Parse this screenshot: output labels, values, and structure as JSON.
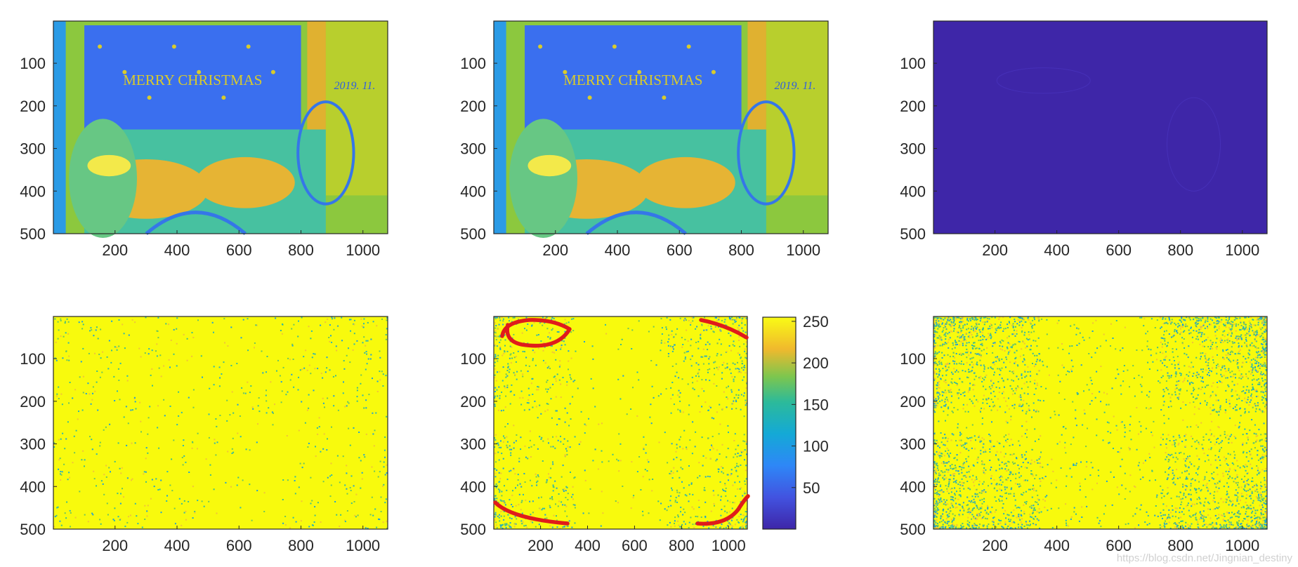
{
  "chart_data": [
    {
      "type": "heatmap",
      "panel": "top-left",
      "content": "scene",
      "xlim": [
        1,
        1080
      ],
      "ylim": [
        500,
        1
      ],
      "xticks": [
        200,
        400,
        600,
        800,
        1000
      ],
      "yticks": [
        100,
        200,
        300,
        400,
        500
      ],
      "xtick_labels": [
        "200",
        "400",
        "600",
        "800",
        "1000"
      ],
      "ytick_labels": [
        "100",
        "200",
        "300",
        "400",
        "500"
      ],
      "banner_text": "MERRY CHRISTMAS",
      "date_text": "2019. 11."
    },
    {
      "type": "heatmap",
      "panel": "top-middle",
      "content": "scene",
      "xlim": [
        1,
        1080
      ],
      "ylim": [
        500,
        1
      ],
      "xticks": [
        200,
        400,
        600,
        800,
        1000
      ],
      "yticks": [
        100,
        200,
        300,
        400,
        500
      ],
      "xtick_labels": [
        "200",
        "400",
        "600",
        "800",
        "1000"
      ],
      "ytick_labels": [
        "100",
        "200",
        "300",
        "400",
        "500"
      ],
      "banner_text": "MERRY CHRISTMAS",
      "date_text": "2019. 11."
    },
    {
      "type": "heatmap",
      "panel": "top-right",
      "content": "difference",
      "xlim": [
        1,
        1080
      ],
      "ylim": [
        500,
        1
      ],
      "xticks": [
        200,
        400,
        600,
        800,
        1000
      ],
      "yticks": [
        100,
        200,
        300,
        400,
        500
      ],
      "xtick_labels": [
        "200",
        "400",
        "600",
        "800",
        "1000"
      ],
      "ytick_labels": [
        "100",
        "200",
        "300",
        "400",
        "500"
      ]
    },
    {
      "type": "heatmap",
      "panel": "bottom-left",
      "content": "noise-light",
      "xlim": [
        1,
        1080
      ],
      "ylim": [
        500,
        1
      ],
      "xticks": [
        200,
        400,
        600,
        800,
        1000
      ],
      "yticks": [
        100,
        200,
        300,
        400,
        500
      ],
      "xtick_labels": [
        "200",
        "400",
        "600",
        "800",
        "1000"
      ],
      "ytick_labels": [
        "100",
        "200",
        "300",
        "400",
        "500"
      ]
    },
    {
      "type": "heatmap",
      "panel": "bottom-middle",
      "content": "noise-medium",
      "xlim": [
        1,
        1080
      ],
      "ylim": [
        500,
        1
      ],
      "xticks": [
        200,
        400,
        600,
        800,
        1000
      ],
      "yticks": [
        100,
        200,
        300,
        400,
        500
      ],
      "xtick_labels": [
        "200",
        "400",
        "600",
        "800",
        "1000"
      ],
      "ytick_labels": [
        "100",
        "200",
        "300",
        "400",
        "500"
      ],
      "colorbar": {
        "range": [
          0,
          255
        ],
        "ticks": [
          50,
          100,
          150,
          200,
          250
        ],
        "tick_labels": [
          "50",
          "100",
          "150",
          "200",
          "250"
        ]
      },
      "annotations": "four red hand-drawn marks circling the corners",
      "annotation_color": "#e01b1b"
    },
    {
      "type": "heatmap",
      "panel": "bottom-right",
      "content": "noise-heavy",
      "xlim": [
        1,
        1080
      ],
      "ylim": [
        500,
        1
      ],
      "xticks": [
        200,
        400,
        600,
        800,
        1000
      ],
      "yticks": [
        100,
        200,
        300,
        400,
        500
      ],
      "xtick_labels": [
        "200",
        "400",
        "600",
        "800",
        "1000"
      ],
      "ytick_labels": [
        "100",
        "200",
        "300",
        "400",
        "500"
      ]
    }
  ],
  "colormap": "parula",
  "colors": {
    "low": "#3e26a8",
    "mid_blue": "#2e87f7",
    "cyan": "#1fb2c1",
    "green": "#7dc64e",
    "yellow": "#f8fa0d",
    "high_yellow": "#f9fb15",
    "annotation": "#e01b1b",
    "axis": "#262626"
  },
  "watermark": "https://blog.csdn.net/Jingnian_destiny"
}
